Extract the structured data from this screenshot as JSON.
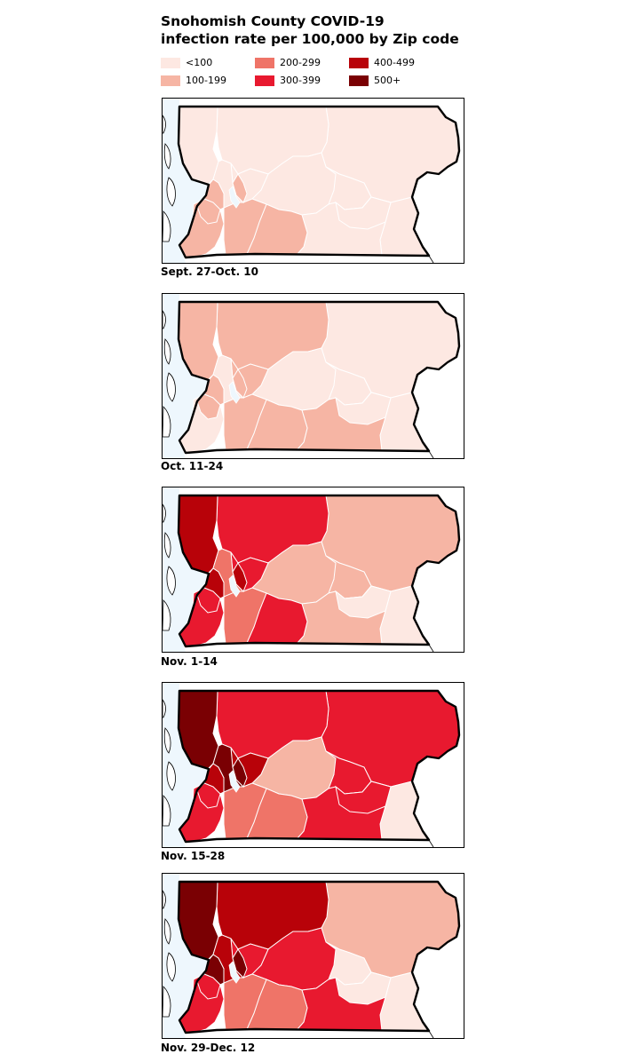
{
  "title_line1": "Snohomish County COVID-19",
  "title_line2": "infection rate per 100,000 by Zip code",
  "legend": [
    {
      "label": "<100",
      "color": "#fde8e2"
    },
    {
      "label": "100-199",
      "color": "#f6b5a4"
    },
    {
      "label": "200-299",
      "color": "#ef7468"
    },
    {
      "label": "300-399",
      "color": "#e8192f"
    },
    {
      "label": "400-499",
      "color": "#b80209"
    },
    {
      "label": "500+",
      "color": "#7a0003"
    }
  ],
  "panels": [
    {
      "label": "Sept. 27-Oct. 10",
      "regions": {
        "north_west": 0,
        "north_mid": 0,
        "north_east": 0,
        "central_west": 0,
        "central": 0,
        "central_east": 0,
        "east": 0,
        "south_west": 1,
        "south_center": 1,
        "south_mid": 1,
        "south_east": 0,
        "coast_a": 1,
        "coast_b": 0,
        "coast_c": 1,
        "lake_strip": 1,
        "southeast": 0
      }
    },
    {
      "label": "Oct. 11-24",
      "regions": {
        "north_west": 1,
        "north_mid": 1,
        "north_east": 0,
        "central_west": 1,
        "central": 0,
        "central_east": 0,
        "east": 0,
        "south_west": 0,
        "south_center": 1,
        "south_mid": 1,
        "south_east": 1,
        "coast_a": 1,
        "coast_b": 0,
        "coast_c": 1,
        "lake_strip": 1,
        "southeast": 0
      }
    },
    {
      "label": "Nov. 1-14",
      "regions": {
        "north_west": 4,
        "north_mid": 3,
        "north_east": 1,
        "central_west": 3,
        "central": 1,
        "central_east": 1,
        "east": 0,
        "south_west": 3,
        "south_center": 2,
        "south_mid": 3,
        "south_east": 1,
        "coast_a": 4,
        "coast_b": 2,
        "coast_c": 3,
        "lake_strip": 4,
        "southeast": 0
      }
    },
    {
      "label": "Nov. 15-28",
      "regions": {
        "north_west": 5,
        "north_mid": 3,
        "north_east": 3,
        "central_west": 4,
        "central": 1,
        "central_east": 3,
        "east": 0,
        "south_west": 3,
        "south_center": 2,
        "south_mid": 2,
        "south_east": 3,
        "coast_a": 4,
        "coast_b": 5,
        "coast_c": 3,
        "lake_strip": 5,
        "southeast": 3
      }
    },
    {
      "label": "Nov. 29-Dec. 12",
      "regions": {
        "north_west": 5,
        "north_mid": 4,
        "north_east": 1,
        "central_west": 3,
        "central": 3,
        "central_east": 0,
        "east": 0,
        "south_west": 3,
        "south_center": 2,
        "south_mid": 2,
        "south_east": 3,
        "coast_a": 5,
        "coast_b": 4,
        "coast_c": 3,
        "lake_strip": 5,
        "southeast": 0
      }
    }
  ]
}
